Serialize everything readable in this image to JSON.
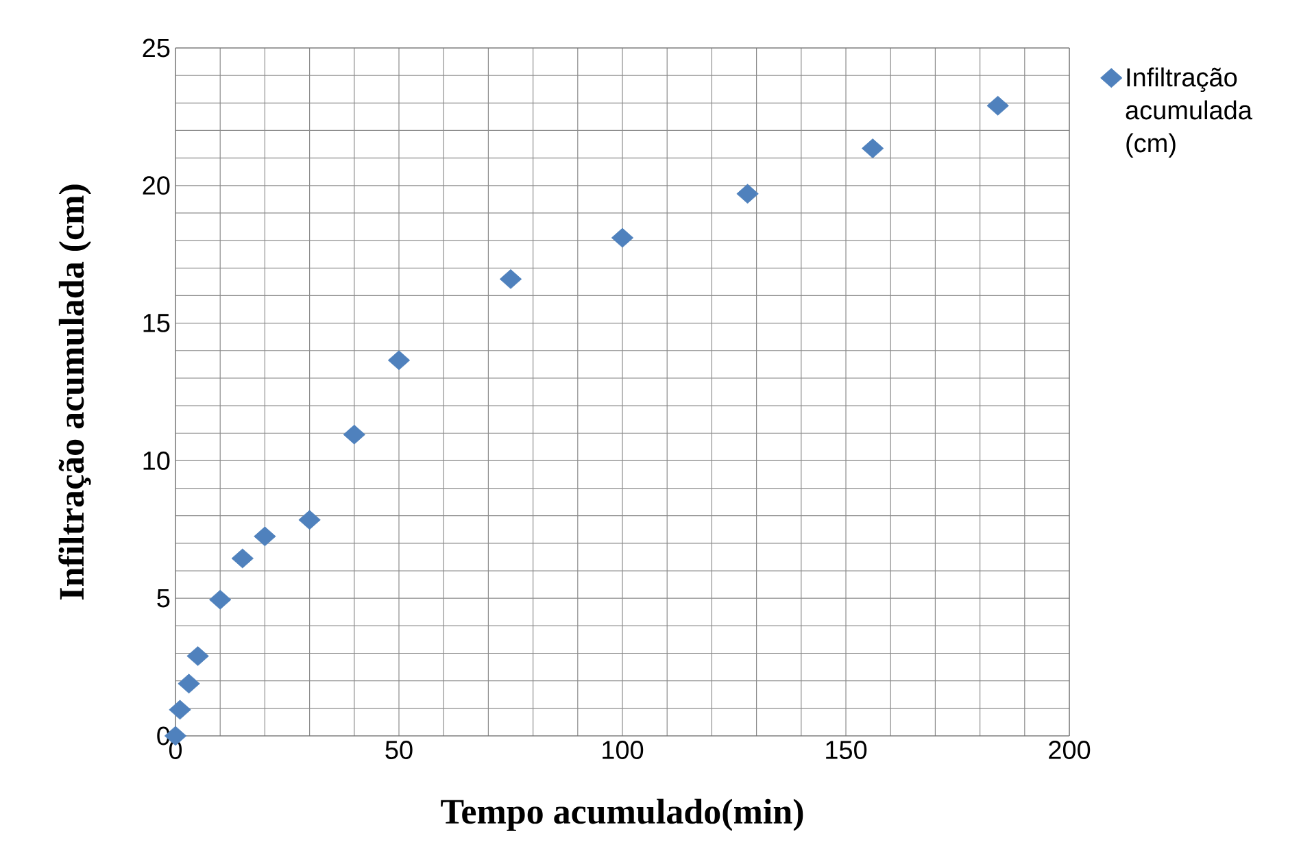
{
  "chart_data": {
    "type": "scatter",
    "xlabel": "Tempo acumulado(min)",
    "ylabel": "Infiltração acumulada (cm)",
    "series": [
      {
        "name": "Infiltração acumulada (cm)",
        "color": "#4f81bd",
        "x": [
          0,
          1,
          3,
          5,
          10,
          15,
          20,
          30,
          40,
          50,
          75,
          100,
          128,
          156,
          184
        ],
        "values": [
          0,
          0.95,
          1.9,
          2.9,
          4.95,
          6.45,
          7.25,
          7.85,
          10.95,
          13.65,
          16.6,
          18.1,
          19.7,
          21.35,
          22.9
        ]
      }
    ],
    "xlim": [
      0,
      200
    ],
    "ylim": [
      0,
      25
    ],
    "xticks": [
      0,
      50,
      100,
      150,
      200
    ],
    "yticks": [
      0,
      5,
      10,
      15,
      20,
      25
    ],
    "grid": true,
    "legend": "top right",
    "marker": "diamond"
  }
}
